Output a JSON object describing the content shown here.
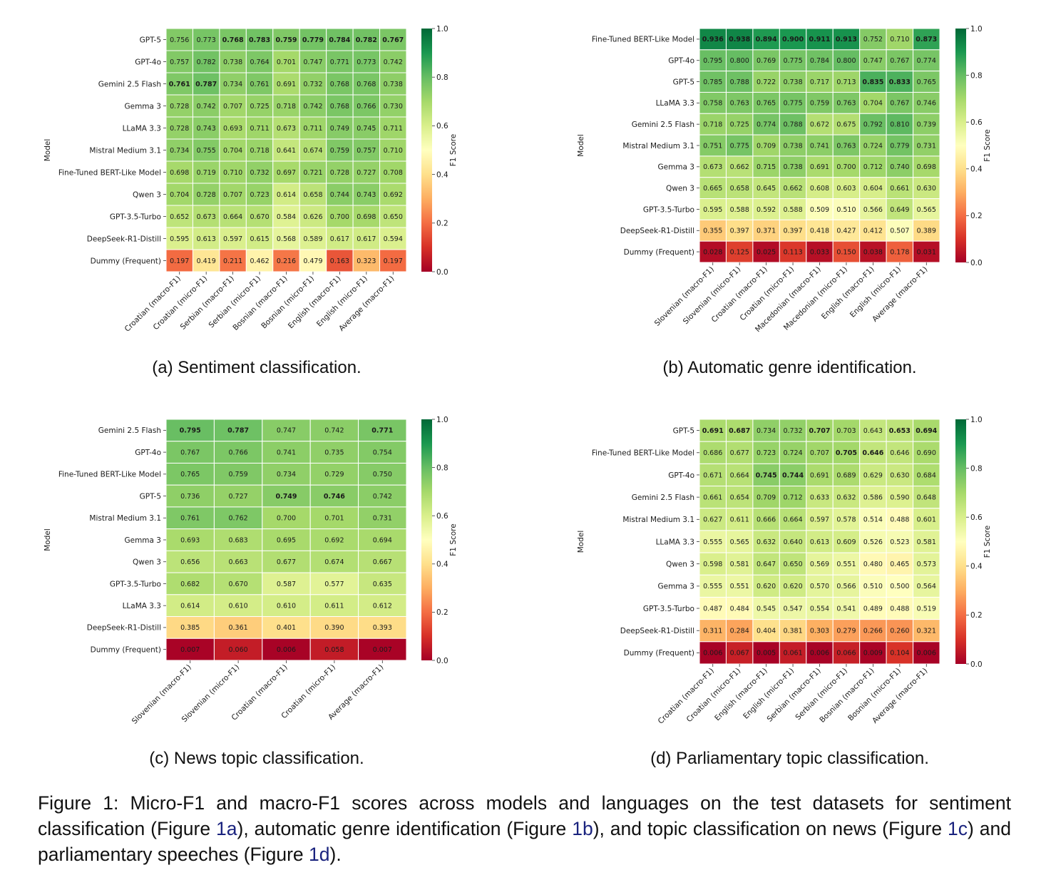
{
  "chart_data": [
    {
      "id": "a",
      "type": "heatmap",
      "caption": "(a) Sentiment classification.",
      "ylabel": "Model",
      "colorbar_label": "F1 Score",
      "colorbar_ticks": [
        "0.0",
        "0.2",
        "0.4",
        "0.6",
        "0.8",
        "1.0"
      ],
      "vlim": [
        0,
        1
      ],
      "colormap": "RdYlGn",
      "columns": [
        "Croatian (macro-F1)",
        "Croatian (micro-F1)",
        "Serbian (macro-F1)",
        "Serbian (micro-F1)",
        "Bosnian (macro-F1)",
        "Bosnian (micro-F1)",
        "English (macro-F1)",
        "English (micro-F1)",
        "Average (macro-F1)"
      ],
      "rows": [
        "GPT-5",
        "GPT-4o",
        "Gemini 2.5 Flash",
        "Gemma 3",
        "LLaMA 3.3",
        "Mistral Medium 3.1",
        "Fine-Tuned BERT-Like Model",
        "Qwen 3",
        "GPT-3.5-Turbo",
        "DeepSeek-R1-Distill",
        "Dummy (Frequent)"
      ],
      "values": [
        [
          "0.756",
          "0.773",
          "0.768",
          "0.783",
          "0.759",
          "0.779",
          "0.784",
          "0.782",
          "0.767"
        ],
        [
          "0.757",
          "0.782",
          "0.738",
          "0.764",
          "0.701",
          "0.747",
          "0.771",
          "0.773",
          "0.742"
        ],
        [
          "0.761",
          "0.787",
          "0.734",
          "0.761",
          "0.691",
          "0.732",
          "0.768",
          "0.768",
          "0.738"
        ],
        [
          "0.728",
          "0.742",
          "0.707",
          "0.725",
          "0.718",
          "0.742",
          "0.768",
          "0.766",
          "0.730"
        ],
        [
          "0.728",
          "0.743",
          "0.693",
          "0.711",
          "0.673",
          "0.711",
          "0.749",
          "0.745",
          "0.711"
        ],
        [
          "0.734",
          "0.755",
          "0.704",
          "0.718",
          "0.641",
          "0.674",
          "0.759",
          "0.757",
          "0.710"
        ],
        [
          "0.698",
          "0.719",
          "0.710",
          "0.732",
          "0.697",
          "0.721",
          "0.728",
          "0.727",
          "0.708"
        ],
        [
          "0.704",
          "0.728",
          "0.707",
          "0.723",
          "0.614",
          "0.658",
          "0.744",
          "0.743",
          "0.692"
        ],
        [
          "0.652",
          "0.673",
          "0.664",
          "0.670",
          "0.584",
          "0.626",
          "0.700",
          "0.698",
          "0.650"
        ],
        [
          "0.595",
          "0.613",
          "0.597",
          "0.615",
          "0.568",
          "0.589",
          "0.617",
          "0.617",
          "0.594"
        ],
        [
          "0.197",
          "0.419",
          "0.211",
          "0.462",
          "0.216",
          "0.479",
          "0.163",
          "0.323",
          "0.197"
        ]
      ],
      "bold": [
        [
          0,
          2
        ],
        [
          0,
          3
        ],
        [
          0,
          4
        ],
        [
          0,
          5
        ],
        [
          0,
          6
        ],
        [
          0,
          7
        ],
        [
          0,
          8
        ],
        [
          2,
          0
        ],
        [
          2,
          1
        ]
      ]
    },
    {
      "id": "b",
      "type": "heatmap",
      "caption": "(b) Automatic genre identification.",
      "ylabel": "Model",
      "colorbar_label": "F1 Score",
      "colorbar_ticks": [
        "0.0",
        "0.2",
        "0.4",
        "0.6",
        "0.8",
        "1.0"
      ],
      "vlim": [
        0,
        1
      ],
      "colormap": "RdYlGn",
      "columns": [
        "Slovenian (macro-F1)",
        "Slovenian (micro-F1)",
        "Croatian (macro-F1)",
        "Croatian (micro-F1)",
        "Macedonian (macro-F1)",
        "Macedonian (micro-F1)",
        "English (macro-F1)",
        "English (micro-F1)",
        "Average (macro-F1)"
      ],
      "rows": [
        "Fine-Tuned BERT-Like Model",
        "GPT-4o",
        "GPT-5",
        "LLaMA 3.3",
        "Gemini 2.5 Flash",
        "Mistral Medium 3.1",
        "Gemma 3",
        "Qwen 3",
        "GPT-3.5-Turbo",
        "DeepSeek-R1-Distill",
        "Dummy (Frequent)"
      ],
      "values": [
        [
          "0.936",
          "0.938",
          "0.894",
          "0.900",
          "0.911",
          "0.913",
          "0.752",
          "0.710",
          "0.873"
        ],
        [
          "0.795",
          "0.800",
          "0.769",
          "0.775",
          "0.784",
          "0.800",
          "0.747",
          "0.767",
          "0.774"
        ],
        [
          "0.785",
          "0.788",
          "0.722",
          "0.738",
          "0.717",
          "0.713",
          "0.835",
          "0.833",
          "0.765"
        ],
        [
          "0.758",
          "0.763",
          "0.765",
          "0.775",
          "0.759",
          "0.763",
          "0.704",
          "0.767",
          "0.746"
        ],
        [
          "0.718",
          "0.725",
          "0.774",
          "0.788",
          "0.672",
          "0.675",
          "0.792",
          "0.810",
          "0.739"
        ],
        [
          "0.751",
          "0.775",
          "0.709",
          "0.738",
          "0.741",
          "0.763",
          "0.724",
          "0.779",
          "0.731"
        ],
        [
          "0.673",
          "0.662",
          "0.715",
          "0.738",
          "0.691",
          "0.700",
          "0.712",
          "0.740",
          "0.698"
        ],
        [
          "0.665",
          "0.658",
          "0.645",
          "0.662",
          "0.608",
          "0.603",
          "0.604",
          "0.661",
          "0.630"
        ],
        [
          "0.595",
          "0.588",
          "0.592",
          "0.588",
          "0.509",
          "0.510",
          "0.566",
          "0.649",
          "0.565"
        ],
        [
          "0.355",
          "0.397",
          "0.371",
          "0.397",
          "0.418",
          "0.427",
          "0.412",
          "0.507",
          "0.389"
        ],
        [
          "0.028",
          "0.125",
          "0.025",
          "0.113",
          "0.033",
          "0.150",
          "0.038",
          "0.178",
          "0.031"
        ]
      ],
      "bold": [
        [
          0,
          0
        ],
        [
          0,
          1
        ],
        [
          0,
          2
        ],
        [
          0,
          3
        ],
        [
          0,
          4
        ],
        [
          0,
          5
        ],
        [
          0,
          8
        ],
        [
          2,
          6
        ],
        [
          2,
          7
        ]
      ]
    },
    {
      "id": "c",
      "type": "heatmap",
      "caption": "(c) News topic classification.",
      "ylabel": "Model",
      "colorbar_label": "F1 Score",
      "colorbar_ticks": [
        "0.0",
        "0.2",
        "0.4",
        "0.6",
        "0.8",
        "1.0"
      ],
      "vlim": [
        0,
        1
      ],
      "colormap": "RdYlGn",
      "columns": [
        "Slovenian (macro-F1)",
        "Slovenian (micro-F1)",
        "Croatian (macro-F1)",
        "Croatian (micro-F1)",
        "Average (macro-F1)"
      ],
      "rows": [
        "Gemini 2.5 Flash",
        "GPT-4o",
        "Fine-Tuned BERT-Like Model",
        "GPT-5",
        "Mistral Medium 3.1",
        "Gemma 3",
        "Qwen 3",
        "GPT-3.5-Turbo",
        "LLaMA 3.3",
        "DeepSeek-R1-Distill",
        "Dummy (Frequent)"
      ],
      "values": [
        [
          "0.795",
          "0.787",
          "0.747",
          "0.742",
          "0.771"
        ],
        [
          "0.767",
          "0.766",
          "0.741",
          "0.735",
          "0.754"
        ],
        [
          "0.765",
          "0.759",
          "0.734",
          "0.729",
          "0.750"
        ],
        [
          "0.736",
          "0.727",
          "0.749",
          "0.746",
          "0.742"
        ],
        [
          "0.761",
          "0.762",
          "0.700",
          "0.701",
          "0.731"
        ],
        [
          "0.693",
          "0.683",
          "0.695",
          "0.692",
          "0.694"
        ],
        [
          "0.656",
          "0.663",
          "0.677",
          "0.674",
          "0.667"
        ],
        [
          "0.682",
          "0.670",
          "0.587",
          "0.577",
          "0.635"
        ],
        [
          "0.614",
          "0.610",
          "0.610",
          "0.611",
          "0.612"
        ],
        [
          "0.385",
          "0.361",
          "0.401",
          "0.390",
          "0.393"
        ],
        [
          "0.007",
          "0.060",
          "0.006",
          "0.058",
          "0.007"
        ]
      ],
      "bold": [
        [
          0,
          0
        ],
        [
          0,
          1
        ],
        [
          0,
          4
        ],
        [
          3,
          2
        ],
        [
          3,
          3
        ]
      ]
    },
    {
      "id": "d",
      "type": "heatmap",
      "caption": "(d) Parliamentary topic classification.",
      "ylabel": "Model",
      "colorbar_label": "F1 Score",
      "colorbar_ticks": [
        "0.0",
        "0.2",
        "0.4",
        "0.6",
        "0.8",
        "1.0"
      ],
      "vlim": [
        0,
        1
      ],
      "colormap": "RdYlGn",
      "columns": [
        "Croatian (macro-F1)",
        "Croatian (micro-F1)",
        "English (macro-F1)",
        "English (micro-F1)",
        "Serbian (macro-F1)",
        "Serbian (micro-F1)",
        "Bosnian (macro-F1)",
        "Bosnian (micro-F1)",
        "Average (macro-F1)"
      ],
      "rows": [
        "GPT-5",
        "Fine-Tuned BERT-Like Model",
        "GPT-4o",
        "Gemini 2.5 Flash",
        "Mistral Medium 3.1",
        "LLaMA 3.3",
        "Qwen 3",
        "Gemma 3",
        "GPT-3.5-Turbo",
        "DeepSeek-R1-Distill",
        "Dummy (Frequent)"
      ],
      "values": [
        [
          "0.691",
          "0.687",
          "0.734",
          "0.732",
          "0.707",
          "0.703",
          "0.643",
          "0.653",
          "0.694"
        ],
        [
          "0.686",
          "0.677",
          "0.723",
          "0.724",
          "0.707",
          "0.705",
          "0.646",
          "0.646",
          "0.690"
        ],
        [
          "0.671",
          "0.664",
          "0.745",
          "0.744",
          "0.691",
          "0.689",
          "0.629",
          "0.630",
          "0.684"
        ],
        [
          "0.661",
          "0.654",
          "0.709",
          "0.712",
          "0.633",
          "0.632",
          "0.586",
          "0.590",
          "0.648"
        ],
        [
          "0.627",
          "0.611",
          "0.666",
          "0.664",
          "0.597",
          "0.578",
          "0.514",
          "0.488",
          "0.601"
        ],
        [
          "0.555",
          "0.565",
          "0.632",
          "0.640",
          "0.613",
          "0.609",
          "0.526",
          "0.523",
          "0.581"
        ],
        [
          "0.598",
          "0.581",
          "0.647",
          "0.650",
          "0.569",
          "0.551",
          "0.480",
          "0.465",
          "0.573"
        ],
        [
          "0.555",
          "0.551",
          "0.620",
          "0.620",
          "0.570",
          "0.566",
          "0.510",
          "0.500",
          "0.564"
        ],
        [
          "0.487",
          "0.484",
          "0.545",
          "0.547",
          "0.554",
          "0.541",
          "0.489",
          "0.488",
          "0.519"
        ],
        [
          "0.311",
          "0.284",
          "0.404",
          "0.381",
          "0.303",
          "0.279",
          "0.266",
          "0.260",
          "0.321"
        ],
        [
          "0.006",
          "0.067",
          "0.005",
          "0.061",
          "0.006",
          "0.066",
          "0.009",
          "0.104",
          "0.006"
        ]
      ],
      "bold": [
        [
          0,
          0
        ],
        [
          0,
          1
        ],
        [
          0,
          4
        ],
        [
          0,
          7
        ],
        [
          0,
          8
        ],
        [
          1,
          5
        ],
        [
          1,
          6
        ],
        [
          2,
          2
        ],
        [
          2,
          3
        ]
      ]
    }
  ],
  "figure_caption": {
    "p1": "Figure 1: Micro-F1 and macro-F1 scores across models and languages on the test datasets for sentiment classification (Figure ",
    "ref_a": "1a",
    "p2": "), automatic genre identification (Figure ",
    "ref_b": "1b",
    "p3": "), and topic classification on news (Figure ",
    "ref_c": "1c",
    "p4": ") and parliamentary speeches (Figure ",
    "ref_d": "1d",
    "p5": ")."
  },
  "colors": {
    "ref_link": "#1a237e"
  }
}
